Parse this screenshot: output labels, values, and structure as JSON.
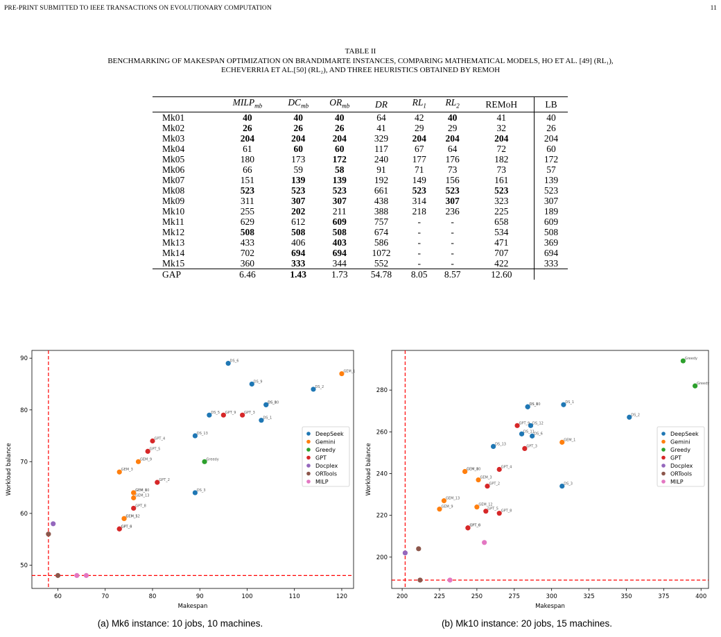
{
  "header": {
    "journal": "PRE-PRINT SUBMITTED TO IEEE TRANSACTIONS ON EVOLUTIONARY COMPUTATION",
    "page_number": "11"
  },
  "table": {
    "title": "TABLE II",
    "caption_line1": "BENCHMARKING OF MAKESPAN OPTIMIZATION ON BRANDIMARTE INSTANCES, COMPARING MATHEMATICAL MODELS, HO ET AL. [49] (RL₁),",
    "caption_line2": "ECHEVERRIA ET AL.[50] (RL₂), AND THREE HEURISTICS OBTAINED BY REMOH",
    "columns": [
      "",
      "MILP_mb",
      "DC_mb",
      "OR_mb",
      "DR",
      "RL_1",
      "RL_2",
      "REMoH",
      "LB"
    ],
    "rows": [
      {
        "name": "Mk01",
        "cells": [
          "40",
          "40",
          "40",
          "64",
          "42",
          "40",
          "41",
          "40"
        ],
        "bold": [
          1,
          1,
          1,
          0,
          0,
          1,
          0
        ]
      },
      {
        "name": "Mk02",
        "cells": [
          "26",
          "26",
          "26",
          "41",
          "29",
          "29",
          "32",
          "26"
        ],
        "bold": [
          1,
          1,
          1,
          0,
          0,
          0,
          0
        ]
      },
      {
        "name": "Mk03",
        "cells": [
          "204",
          "204",
          "204",
          "329",
          "204",
          "204",
          "204",
          "204"
        ],
        "bold": [
          1,
          1,
          1,
          0,
          1,
          1,
          1
        ]
      },
      {
        "name": "Mk04",
        "cells": [
          "61",
          "60",
          "60",
          "117",
          "67",
          "64",
          "72",
          "60"
        ],
        "bold": [
          0,
          1,
          1,
          0,
          0,
          0,
          0
        ]
      },
      {
        "name": "Mk05",
        "cells": [
          "180",
          "173",
          "172",
          "240",
          "177",
          "176",
          "182",
          "172"
        ],
        "bold": [
          0,
          0,
          1,
          0,
          0,
          0,
          0
        ]
      },
      {
        "name": "Mk06",
        "cells": [
          "66",
          "59",
          "58",
          "91",
          "71",
          "73",
          "73",
          "57"
        ],
        "bold": [
          0,
          0,
          1,
          0,
          0,
          0,
          0
        ]
      },
      {
        "name": "Mk07",
        "cells": [
          "151",
          "139",
          "139",
          "192",
          "149",
          "156",
          "161",
          "139"
        ],
        "bold": [
          0,
          1,
          1,
          0,
          0,
          0,
          0
        ]
      },
      {
        "name": "Mk08",
        "cells": [
          "523",
          "523",
          "523",
          "661",
          "523",
          "523",
          "523",
          "523"
        ],
        "bold": [
          1,
          1,
          1,
          0,
          1,
          1,
          1
        ]
      },
      {
        "name": "Mk09",
        "cells": [
          "311",
          "307",
          "307",
          "438",
          "314",
          "307",
          "323",
          "307"
        ],
        "bold": [
          0,
          1,
          1,
          0,
          0,
          1,
          0
        ]
      },
      {
        "name": "Mk10",
        "cells": [
          "255",
          "202",
          "211",
          "388",
          "218",
          "236",
          "225",
          "189"
        ],
        "bold": [
          0,
          1,
          0,
          0,
          0,
          0,
          0
        ]
      },
      {
        "name": "Mk11",
        "cells": [
          "629",
          "612",
          "609",
          "757",
          "-",
          "-",
          "658",
          "609"
        ],
        "bold": [
          0,
          0,
          1,
          0,
          0,
          0,
          0
        ]
      },
      {
        "name": "Mk12",
        "cells": [
          "508",
          "508",
          "508",
          "674",
          "-",
          "-",
          "534",
          "508"
        ],
        "bold": [
          1,
          1,
          1,
          0,
          0,
          0,
          0
        ]
      },
      {
        "name": "Mk13",
        "cells": [
          "433",
          "406",
          "403",
          "586",
          "-",
          "-",
          "471",
          "369"
        ],
        "bold": [
          0,
          0,
          1,
          0,
          0,
          0,
          0
        ]
      },
      {
        "name": "Mk14",
        "cells": [
          "702",
          "694",
          "694",
          "1072",
          "-",
          "-",
          "707",
          "694"
        ],
        "bold": [
          0,
          1,
          1,
          0,
          0,
          0,
          0
        ]
      },
      {
        "name": "Mk15",
        "cells": [
          "360",
          "333",
          "344",
          "552",
          "-",
          "-",
          "422",
          "333"
        ],
        "bold": [
          0,
          1,
          0,
          0,
          0,
          0,
          0
        ]
      }
    ],
    "gap_row": {
      "name": "GAP",
      "cells": [
        "6.46",
        "1.43",
        "1.73",
        "54.78",
        "8.05",
        "8.57",
        "12.60",
        ""
      ],
      "bold": [
        0,
        1,
        0,
        0,
        0,
        0,
        0
      ]
    }
  },
  "legend_entries": [
    {
      "name": "DeepSeek",
      "color": "#1f77b4"
    },
    {
      "name": "Gemini",
      "color": "#ff7f0e"
    },
    {
      "name": "Greedy",
      "color": "#2ca02c"
    },
    {
      "name": "GPT",
      "color": "#d62728"
    },
    {
      "name": "Docplex",
      "color": "#9467bd"
    },
    {
      "name": "ORTools",
      "color": "#8c564b"
    },
    {
      "name": "MILP",
      "color": "#e377c2"
    }
  ],
  "chart_data": [
    {
      "type": "scatter",
      "caption": "(a) Mk6 instance: 10 jobs, 10 machines.",
      "xlabel": "Makespan",
      "ylabel": "Workload balance",
      "xlim": [
        54.5,
        122.5
      ],
      "ylim": [
        45.5,
        91.5
      ],
      "xticks": [
        60,
        70,
        80,
        90,
        100,
        110,
        120
      ],
      "yticks": [
        50,
        60,
        70,
        80,
        90
      ],
      "ref_lines": {
        "x": 58,
        "y": 48
      },
      "grid": false,
      "legend": "center-right",
      "points": [
        {
          "g": "DeepSeek",
          "x": 96,
          "y": 89,
          "label": "DS_6"
        },
        {
          "g": "DeepSeek",
          "x": 101,
          "y": 85,
          "label": "DS_9"
        },
        {
          "g": "DeepSeek",
          "x": 114,
          "y": 84,
          "label": "DS_2"
        },
        {
          "g": "DeepSeek",
          "x": 104,
          "y": 81,
          "label": "DS_10"
        },
        {
          "g": "DeepSeek",
          "x": 104,
          "y": 81,
          "label": "DS_8"
        },
        {
          "g": "DeepSeek",
          "x": 92,
          "y": 79,
          "label": "DS_5"
        },
        {
          "g": "DeepSeek",
          "x": 103,
          "y": 78,
          "label": "DS_1"
        },
        {
          "g": "DeepSeek",
          "x": 89,
          "y": 75,
          "label": "DS_13"
        },
        {
          "g": "DeepSeek",
          "x": 89,
          "y": 64,
          "label": "DS_3"
        },
        {
          "g": "Gemini",
          "x": 120,
          "y": 87,
          "label": "GEM_1"
        },
        {
          "g": "Gemini",
          "x": 77,
          "y": 70,
          "label": "GEM_9"
        },
        {
          "g": "Gemini",
          "x": 73,
          "y": 68,
          "label": "GEM_3"
        },
        {
          "g": "Gemini",
          "x": 76,
          "y": 64,
          "label": "GEM_10"
        },
        {
          "g": "Gemini",
          "x": 76,
          "y": 64,
          "label": "GEM_8"
        },
        {
          "g": "Gemini",
          "x": 76,
          "y": 63,
          "label": "GEM_13"
        },
        {
          "g": "Gemini",
          "x": 74,
          "y": 59,
          "label": "GEM_12"
        },
        {
          "g": "Gemini",
          "x": 74,
          "y": 59,
          "label": "GEM_5"
        },
        {
          "g": "Greedy",
          "x": 91,
          "y": 70,
          "label": "Greedy"
        },
        {
          "g": "GPT",
          "x": 95,
          "y": 79,
          "label": "GPT_9"
        },
        {
          "g": "GPT",
          "x": 99,
          "y": 79,
          "label": "GPT_3"
        },
        {
          "g": "GPT",
          "x": 80,
          "y": 74,
          "label": "GPT_4"
        },
        {
          "g": "GPT",
          "x": 79,
          "y": 72,
          "label": "GPT_5"
        },
        {
          "g": "GPT",
          "x": 81,
          "y": 66,
          "label": "GPT_2"
        },
        {
          "g": "GPT",
          "x": 76,
          "y": 61,
          "label": "GPT_8"
        },
        {
          "g": "GPT",
          "x": 73,
          "y": 57,
          "label": "GPT_0"
        },
        {
          "g": "GPT",
          "x": 73,
          "y": 57,
          "label": "GPT_6"
        },
        {
          "g": "Docplex",
          "x": 59,
          "y": 58,
          "label": ""
        },
        {
          "g": "ORTools",
          "x": 58,
          "y": 56,
          "label": ""
        },
        {
          "g": "ORTools",
          "x": 60,
          "y": 48,
          "label": ""
        },
        {
          "g": "MILP",
          "x": 64,
          "y": 48,
          "label": ""
        },
        {
          "g": "MILP",
          "x": 66,
          "y": 48,
          "label": ""
        }
      ]
    },
    {
      "type": "scatter",
      "caption": "(b) Mk10 instance: 20 jobs, 15 machines.",
      "xlabel": "Makespan",
      "ylabel": "Workload balance",
      "xlim": [
        193,
        405
      ],
      "ylim": [
        185,
        299
      ],
      "xticks": [
        200,
        225,
        250,
        275,
        300,
        325,
        350,
        375,
        400
      ],
      "yticks": [
        200,
        220,
        240,
        260,
        280
      ],
      "ref_lines": {
        "x": 202,
        "y": 189
      },
      "grid": false,
      "legend": "center-right",
      "points": [
        {
          "g": "DeepSeek",
          "x": 308,
          "y": 273,
          "label": "DS_1"
        },
        {
          "g": "DeepSeek",
          "x": 284,
          "y": 272,
          "label": "DS_10"
        },
        {
          "g": "DeepSeek",
          "x": 284,
          "y": 272,
          "label": "DS_8"
        },
        {
          "g": "DeepSeek",
          "x": 352,
          "y": 267,
          "label": "DS_2"
        },
        {
          "g": "DeepSeek",
          "x": 286,
          "y": 263,
          "label": "DS_12"
        },
        {
          "g": "DeepSeek",
          "x": 280,
          "y": 259,
          "label": "DS_11"
        },
        {
          "g": "DeepSeek",
          "x": 287,
          "y": 258,
          "label": "DS_6"
        },
        {
          "g": "DeepSeek",
          "x": 261,
          "y": 253,
          "label": "DS_13"
        },
        {
          "g": "DeepSeek",
          "x": 307,
          "y": 234,
          "label": "DS_3"
        },
        {
          "g": "Gemini",
          "x": 307,
          "y": 255,
          "label": "GEM_1"
        },
        {
          "g": "Gemini",
          "x": 242,
          "y": 241,
          "label": "GEM_10"
        },
        {
          "g": "Gemini",
          "x": 242,
          "y": 241,
          "label": "GEM_8"
        },
        {
          "g": "Gemini",
          "x": 251,
          "y": 237,
          "label": "GEM_3"
        },
        {
          "g": "Gemini",
          "x": 228,
          "y": 227,
          "label": "GEM_13"
        },
        {
          "g": "Gemini",
          "x": 250,
          "y": 224,
          "label": "GEM_12"
        },
        {
          "g": "Gemini",
          "x": 225,
          "y": 223,
          "label": "GEM_9"
        },
        {
          "g": "Greedy",
          "x": 388,
          "y": 294,
          "label": "Greedy"
        },
        {
          "g": "Greedy",
          "x": 396,
          "y": 282,
          "label": "Greedy"
        },
        {
          "g": "GPT",
          "x": 277,
          "y": 263,
          "label": "GPT_9"
        },
        {
          "g": "GPT",
          "x": 282,
          "y": 252,
          "label": "GPT_3"
        },
        {
          "g": "GPT",
          "x": 265,
          "y": 242,
          "label": "GPT_4"
        },
        {
          "g": "GPT",
          "x": 257,
          "y": 234,
          "label": "GPT_2"
        },
        {
          "g": "GPT",
          "x": 256,
          "y": 222,
          "label": "GPT_5"
        },
        {
          "g": "GPT",
          "x": 265,
          "y": 221,
          "label": "GPT_8"
        },
        {
          "g": "GPT",
          "x": 244,
          "y": 214,
          "label": "GPT_0"
        },
        {
          "g": "GPT",
          "x": 244,
          "y": 214,
          "label": "GPT_6"
        },
        {
          "g": "Docplex",
          "x": 202,
          "y": 202,
          "label": ""
        },
        {
          "g": "ORTools",
          "x": 211,
          "y": 204,
          "label": ""
        },
        {
          "g": "ORTools",
          "x": 212,
          "y": 189,
          "label": ""
        },
        {
          "g": "MILP",
          "x": 255,
          "y": 207,
          "label": ""
        },
        {
          "g": "MILP",
          "x": 232,
          "y": 189,
          "label": ""
        }
      ]
    }
  ]
}
